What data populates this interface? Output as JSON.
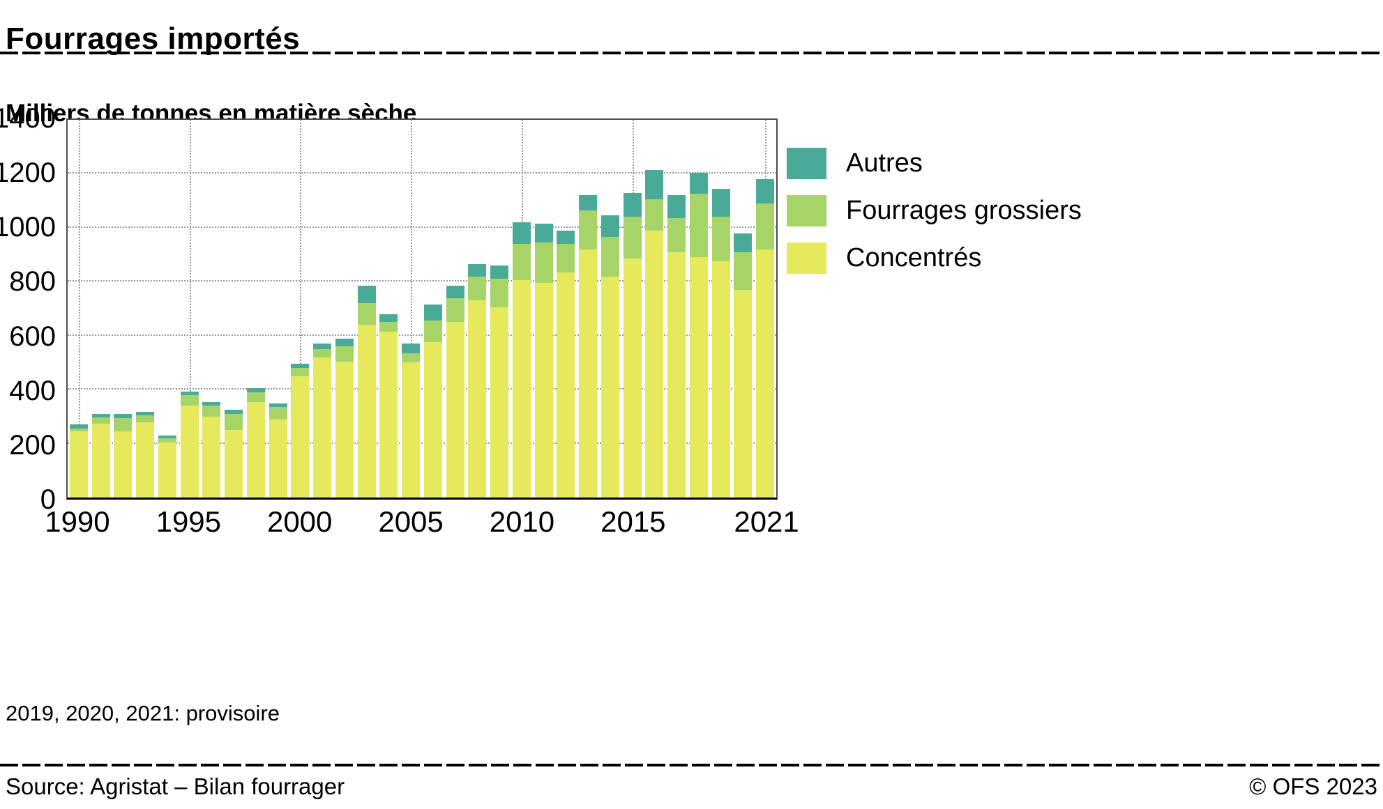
{
  "header": {
    "title": "Fourrages importés"
  },
  "chart": {
    "subtitle": "Milliers de tonnes en matière sèche",
    "footnote": "2019, 2020, 2021: provisoire"
  },
  "footer": {
    "source": "Source: Agristat – Bilan fourrager",
    "copyright": "© OFS 2023"
  },
  "chart_data": {
    "type": "bar",
    "stacked": true,
    "title": "Fourrages importés",
    "subtitle": "Milliers de tonnes en matière sèche",
    "xlabel": "",
    "ylabel": "Milliers de tonnes en matière sèche",
    "ylim": [
      0,
      1400
    ],
    "ytick_step": 200,
    "grid": "dotted horizontal lines every 200, dotted vertical lines at labeled years",
    "legend_position": "right",
    "footnote": "2019, 2020, 2021: provisoire",
    "categories": [
      1990,
      1991,
      1992,
      1993,
      1994,
      1995,
      1996,
      1997,
      1998,
      1999,
      2000,
      2001,
      2002,
      2003,
      2004,
      2005,
      2006,
      2007,
      2008,
      2009,
      2010,
      2011,
      2012,
      2013,
      2014,
      2015,
      2016,
      2017,
      2018,
      2019,
      2020,
      2021
    ],
    "x_tick_labels": [
      "1990",
      "1995",
      "2000",
      "2005",
      "2010",
      "2015",
      "2021"
    ],
    "x_tick_indices": [
      0,
      5,
      10,
      15,
      20,
      25,
      31
    ],
    "series": [
      {
        "name": "Concentrés",
        "color": "#e5e95b",
        "values": [
          245,
          275,
          245,
          280,
          205,
          340,
          300,
          250,
          355,
          290,
          450,
          520,
          505,
          640,
          615,
          500,
          575,
          650,
          730,
          705,
          805,
          795,
          835,
          920,
          820,
          885,
          990,
          910,
          890,
          875,
          770,
          920
        ]
      },
      {
        "name": "Fourrages grossiers",
        "color": "#a7d467",
        "values": [
          12,
          22,
          50,
          25,
          15,
          40,
          40,
          60,
          35,
          45,
          30,
          30,
          55,
          80,
          35,
          35,
          80,
          90,
          90,
          105,
          135,
          150,
          105,
          145,
          145,
          155,
          115,
          125,
          235,
          165,
          140,
          170
        ]
      },
      {
        "name": "Autres",
        "color": "#4aaa98",
        "values": [
          13,
          13,
          15,
          12,
          10,
          13,
          15,
          15,
          15,
          15,
          15,
          20,
          30,
          65,
          30,
          35,
          60,
          45,
          45,
          50,
          80,
          70,
          50,
          55,
          80,
          90,
          110,
          85,
          80,
          105,
          70,
          90
        ]
      }
    ],
    "legend": [
      {
        "label": "Autres",
        "color": "#4aaa98"
      },
      {
        "label": "Fourrages grossiers",
        "color": "#a7d467"
      },
      {
        "label": "Concentrés",
        "color": "#e5e95b"
      }
    ]
  }
}
